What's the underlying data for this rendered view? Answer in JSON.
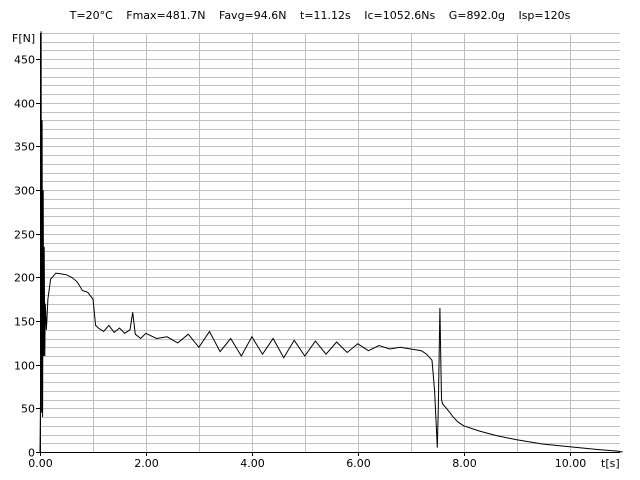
{
  "header": {
    "items": [
      "T=20°C",
      "Fmax=481.7N",
      "Favg=94.6N",
      "t=11.12s",
      "Ic=1052.6Ns",
      "G=892.0g",
      "Isp=120s"
    ]
  },
  "chart_data": {
    "type": "line",
    "title": "",
    "xlabel": "t[s]",
    "ylabel": "F[N]",
    "xlim": [
      0,
      10.95
    ],
    "ylim": [
      0,
      480
    ],
    "grid": true,
    "x_ticks": [
      {
        "value": 0,
        "label": "0.00"
      },
      {
        "value": 2,
        "label": "2.00"
      },
      {
        "value": 4,
        "label": "4.00"
      },
      {
        "value": 6,
        "label": "6.00"
      },
      {
        "value": 8,
        "label": "8.00"
      },
      {
        "value": 10,
        "label": "10.00"
      }
    ],
    "y_ticks": [
      {
        "value": 0,
        "label": "0"
      },
      {
        "value": 50,
        "label": "50"
      },
      {
        "value": 100,
        "label": "100"
      },
      {
        "value": 150,
        "label": "150"
      },
      {
        "value": 200,
        "label": "200"
      },
      {
        "value": 250,
        "label": "250"
      },
      {
        "value": 300,
        "label": "300"
      },
      {
        "value": 350,
        "label": "350"
      },
      {
        "value": 400,
        "label": "400"
      },
      {
        "value": 450,
        "label": "450"
      }
    ],
    "series": [
      {
        "color": "#000000",
        "points": [
          [
            0.0,
            0
          ],
          [
            0.01,
            60
          ],
          [
            0.02,
            482
          ],
          [
            0.03,
            45
          ],
          [
            0.04,
            380
          ],
          [
            0.05,
            40
          ],
          [
            0.06,
            300
          ],
          [
            0.07,
            110
          ],
          [
            0.08,
            235
          ],
          [
            0.09,
            110
          ],
          [
            0.1,
            170
          ],
          [
            0.12,
            140
          ],
          [
            0.15,
            175
          ],
          [
            0.2,
            198
          ],
          [
            0.3,
            205
          ],
          [
            0.4,
            204
          ],
          [
            0.5,
            203
          ],
          [
            0.6,
            200
          ],
          [
            0.7,
            195
          ],
          [
            0.8,
            185
          ],
          [
            0.9,
            183
          ],
          [
            1.0,
            175
          ],
          [
            1.05,
            145
          ],
          [
            1.1,
            142
          ],
          [
            1.2,
            138
          ],
          [
            1.3,
            145
          ],
          [
            1.4,
            137
          ],
          [
            1.5,
            142
          ],
          [
            1.6,
            136
          ],
          [
            1.7,
            140
          ],
          [
            1.75,
            160
          ],
          [
            1.8,
            135
          ],
          [
            1.9,
            130
          ],
          [
            2.0,
            136
          ],
          [
            2.2,
            130
          ],
          [
            2.4,
            132
          ],
          [
            2.6,
            125
          ],
          [
            2.8,
            135
          ],
          [
            3.0,
            120
          ],
          [
            3.2,
            138
          ],
          [
            3.4,
            115
          ],
          [
            3.6,
            130
          ],
          [
            3.8,
            110
          ],
          [
            4.0,
            132
          ],
          [
            4.2,
            112
          ],
          [
            4.4,
            130
          ],
          [
            4.6,
            108
          ],
          [
            4.8,
            128
          ],
          [
            5.0,
            110
          ],
          [
            5.2,
            127
          ],
          [
            5.4,
            112
          ],
          [
            5.6,
            126
          ],
          [
            5.8,
            114
          ],
          [
            6.0,
            124
          ],
          [
            6.2,
            116
          ],
          [
            6.4,
            122
          ],
          [
            6.6,
            118
          ],
          [
            6.8,
            120
          ],
          [
            7.0,
            118
          ],
          [
            7.2,
            116
          ],
          [
            7.3,
            112
          ],
          [
            7.4,
            105
          ],
          [
            7.45,
            70
          ],
          [
            7.5,
            5
          ],
          [
            7.52,
            50
          ],
          [
            7.55,
            165
          ],
          [
            7.58,
            60
          ],
          [
            7.6,
            55
          ],
          [
            7.7,
            48
          ],
          [
            7.8,
            40
          ],
          [
            7.9,
            34
          ],
          [
            8.0,
            30
          ],
          [
            8.3,
            24
          ],
          [
            8.6,
            19
          ],
          [
            9.0,
            14
          ],
          [
            9.5,
            9
          ],
          [
            10.0,
            6
          ],
          [
            10.5,
            3
          ],
          [
            10.9,
            1
          ],
          [
            11.0,
            0
          ]
        ]
      }
    ]
  }
}
